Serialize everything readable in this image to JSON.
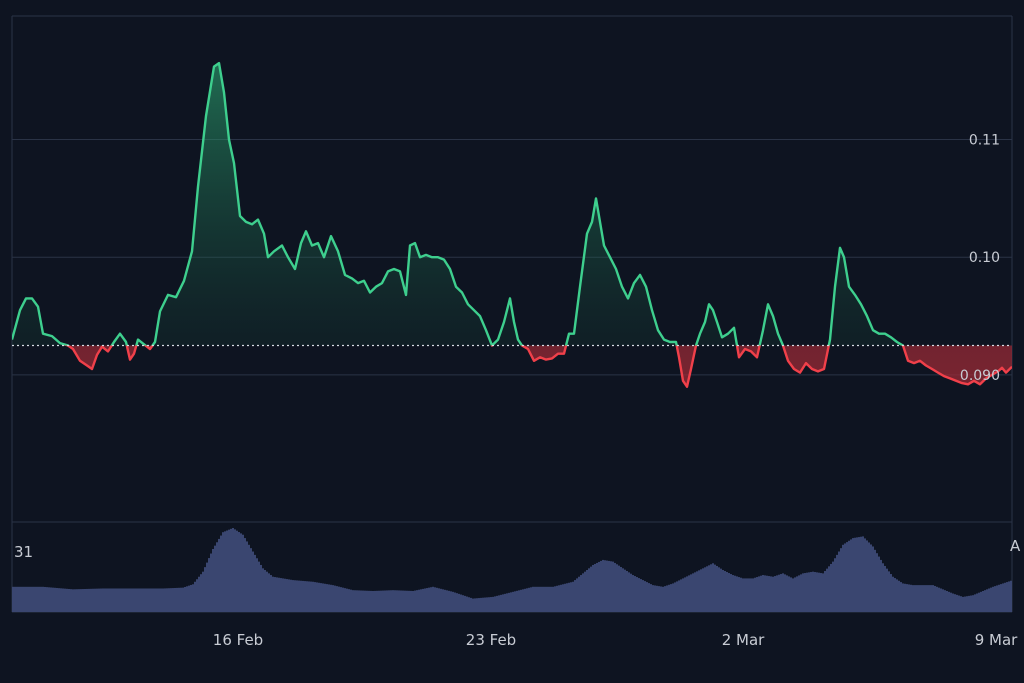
{
  "chart_data": {
    "type": "area",
    "baseline": 0.0925,
    "ylim": [
      0.0775,
      0.1205
    ],
    "y_ticks": [
      {
        "value": 0.11,
        "label": "0.11"
      },
      {
        "value": 0.1,
        "label": "0.10"
      },
      {
        "value": 0.09,
        "label": "0.090"
      }
    ],
    "x_ticks": [
      {
        "pos": 0.226,
        "label": "16 Feb"
      },
      {
        "pos": 0.479,
        "label": "23 Feb"
      },
      {
        "pos": 0.731,
        "label": "2 Mar"
      },
      {
        "pos": 0.984,
        "label": "9 Mar"
      }
    ],
    "price_series": [
      [
        0.0,
        0.093
      ],
      [
        0.008,
        0.0955
      ],
      [
        0.014,
        0.0965
      ],
      [
        0.02,
        0.0965
      ],
      [
        0.026,
        0.0958
      ],
      [
        0.031,
        0.0935
      ],
      [
        0.04,
        0.0933
      ],
      [
        0.048,
        0.0927
      ],
      [
        0.056,
        0.0925
      ],
      [
        0.061,
        0.0922
      ],
      [
        0.068,
        0.0912
      ],
      [
        0.075,
        0.0908
      ],
      [
        0.08,
        0.0905
      ],
      [
        0.085,
        0.0917
      ],
      [
        0.09,
        0.0924
      ],
      [
        0.096,
        0.092
      ],
      [
        0.102,
        0.0928
      ],
      [
        0.108,
        0.0935
      ],
      [
        0.114,
        0.0928
      ],
      [
        0.118,
        0.0913
      ],
      [
        0.122,
        0.0918
      ],
      [
        0.126,
        0.093
      ],
      [
        0.132,
        0.0926
      ],
      [
        0.138,
        0.0922
      ],
      [
        0.143,
        0.0928
      ],
      [
        0.148,
        0.0954
      ],
      [
        0.156,
        0.0968
      ],
      [
        0.164,
        0.0966
      ],
      [
        0.172,
        0.098
      ],
      [
        0.18,
        0.1005
      ],
      [
        0.186,
        0.106
      ],
      [
        0.194,
        0.112
      ],
      [
        0.202,
        0.1162
      ],
      [
        0.207,
        0.1165
      ],
      [
        0.212,
        0.114
      ],
      [
        0.217,
        0.11
      ],
      [
        0.222,
        0.108
      ],
      [
        0.228,
        0.1035
      ],
      [
        0.234,
        0.103
      ],
      [
        0.24,
        0.1028
      ],
      [
        0.246,
        0.1032
      ],
      [
        0.252,
        0.102
      ],
      [
        0.256,
        0.1
      ],
      [
        0.262,
        0.1005
      ],
      [
        0.27,
        0.101
      ],
      [
        0.276,
        0.1
      ],
      [
        0.283,
        0.099
      ],
      [
        0.289,
        0.1012
      ],
      [
        0.294,
        0.1022
      ],
      [
        0.3,
        0.101
      ],
      [
        0.306,
        0.1012
      ],
      [
        0.312,
        0.1
      ],
      [
        0.319,
        0.1018
      ],
      [
        0.326,
        0.1005
      ],
      [
        0.333,
        0.0985
      ],
      [
        0.34,
        0.0982
      ],
      [
        0.346,
        0.0978
      ],
      [
        0.352,
        0.098
      ],
      [
        0.358,
        0.097
      ],
      [
        0.364,
        0.0975
      ],
      [
        0.37,
        0.0978
      ],
      [
        0.376,
        0.0988
      ],
      [
        0.382,
        0.099
      ],
      [
        0.388,
        0.0988
      ],
      [
        0.394,
        0.0968
      ],
      [
        0.398,
        0.101
      ],
      [
        0.403,
        0.1012
      ],
      [
        0.408,
        0.1
      ],
      [
        0.414,
        0.1002
      ],
      [
        0.42,
        0.1
      ],
      [
        0.426,
        0.1
      ],
      [
        0.432,
        0.0998
      ],
      [
        0.438,
        0.099
      ],
      [
        0.444,
        0.0975
      ],
      [
        0.45,
        0.097
      ],
      [
        0.456,
        0.096
      ],
      [
        0.462,
        0.0955
      ],
      [
        0.468,
        0.095
      ],
      [
        0.474,
        0.0938
      ],
      [
        0.48,
        0.0925
      ],
      [
        0.486,
        0.093
      ],
      [
        0.492,
        0.0945
      ],
      [
        0.498,
        0.0965
      ],
      [
        0.502,
        0.0945
      ],
      [
        0.506,
        0.093
      ],
      [
        0.51,
        0.0925
      ],
      [
        0.516,
        0.0922
      ],
      [
        0.522,
        0.0912
      ],
      [
        0.528,
        0.0915
      ],
      [
        0.534,
        0.0913
      ],
      [
        0.54,
        0.0914
      ],
      [
        0.546,
        0.0918
      ],
      [
        0.552,
        0.0918
      ],
      [
        0.557,
        0.0935
      ],
      [
        0.562,
        0.0935
      ],
      [
        0.568,
        0.0975
      ],
      [
        0.575,
        0.102
      ],
      [
        0.58,
        0.103
      ],
      [
        0.584,
        0.105
      ],
      [
        0.588,
        0.103
      ],
      [
        0.592,
        0.101
      ],
      [
        0.598,
        0.1
      ],
      [
        0.604,
        0.099
      ],
      [
        0.61,
        0.0975
      ],
      [
        0.616,
        0.0965
      ],
      [
        0.622,
        0.0978
      ],
      [
        0.628,
        0.0985
      ],
      [
        0.634,
        0.0975
      ],
      [
        0.64,
        0.0955
      ],
      [
        0.646,
        0.0938
      ],
      [
        0.652,
        0.093
      ],
      [
        0.658,
        0.0928
      ],
      [
        0.664,
        0.0928
      ],
      [
        0.667,
        0.0915
      ],
      [
        0.671,
        0.0895
      ],
      [
        0.675,
        0.089
      ],
      [
        0.679,
        0.0905
      ],
      [
        0.684,
        0.0925
      ],
      [
        0.688,
        0.0935
      ],
      [
        0.693,
        0.0945
      ],
      [
        0.697,
        0.096
      ],
      [
        0.701,
        0.0955
      ],
      [
        0.705,
        0.0945
      ],
      [
        0.71,
        0.0932
      ],
      [
        0.716,
        0.0935
      ],
      [
        0.722,
        0.094
      ],
      [
        0.727,
        0.0915
      ],
      [
        0.733,
        0.0922
      ],
      [
        0.739,
        0.092
      ],
      [
        0.745,
        0.0915
      ],
      [
        0.751,
        0.0938
      ],
      [
        0.756,
        0.096
      ],
      [
        0.761,
        0.095
      ],
      [
        0.766,
        0.0935
      ],
      [
        0.771,
        0.0925
      ],
      [
        0.776,
        0.0912
      ],
      [
        0.782,
        0.0905
      ],
      [
        0.788,
        0.0902
      ],
      [
        0.794,
        0.091
      ],
      [
        0.8,
        0.0905
      ],
      [
        0.806,
        0.0903
      ],
      [
        0.812,
        0.0905
      ],
      [
        0.818,
        0.093
      ],
      [
        0.823,
        0.0975
      ],
      [
        0.828,
        0.1008
      ],
      [
        0.832,
        0.1
      ],
      [
        0.837,
        0.0975
      ],
      [
        0.843,
        0.0968
      ],
      [
        0.849,
        0.096
      ],
      [
        0.855,
        0.095
      ],
      [
        0.861,
        0.0938
      ],
      [
        0.867,
        0.0935
      ],
      [
        0.873,
        0.0935
      ],
      [
        0.879,
        0.0932
      ],
      [
        0.885,
        0.0928
      ],
      [
        0.891,
        0.0925
      ],
      [
        0.896,
        0.0912
      ],
      [
        0.902,
        0.091
      ],
      [
        0.908,
        0.0912
      ],
      [
        0.914,
        0.0908
      ],
      [
        0.92,
        0.0905
      ],
      [
        0.926,
        0.0902
      ],
      [
        0.932,
        0.0899
      ],
      [
        0.938,
        0.0897
      ],
      [
        0.944,
        0.0895
      ],
      [
        0.95,
        0.0893
      ],
      [
        0.956,
        0.0892
      ],
      [
        0.962,
        0.0895
      ],
      [
        0.968,
        0.0892
      ],
      [
        0.974,
        0.0897
      ],
      [
        0.98,
        0.09
      ],
      [
        0.986,
        0.0903
      ],
      [
        0.99,
        0.0906
      ],
      [
        0.994,
        0.0902
      ],
      [
        1.0,
        0.0907
      ]
    ],
    "volume_series": [
      [
        0.0,
        0.3
      ],
      [
        0.03,
        0.3
      ],
      [
        0.06,
        0.27
      ],
      [
        0.09,
        0.28
      ],
      [
        0.12,
        0.28
      ],
      [
        0.15,
        0.28
      ],
      [
        0.17,
        0.29
      ],
      [
        0.18,
        0.33
      ],
      [
        0.19,
        0.48
      ],
      [
        0.2,
        0.75
      ],
      [
        0.21,
        0.95
      ],
      [
        0.22,
        1.0
      ],
      [
        0.23,
        0.92
      ],
      [
        0.24,
        0.72
      ],
      [
        0.25,
        0.52
      ],
      [
        0.26,
        0.42
      ],
      [
        0.27,
        0.4
      ],
      [
        0.28,
        0.38
      ],
      [
        0.3,
        0.36
      ],
      [
        0.32,
        0.32
      ],
      [
        0.34,
        0.26
      ],
      [
        0.36,
        0.25
      ],
      [
        0.38,
        0.26
      ],
      [
        0.4,
        0.25
      ],
      [
        0.42,
        0.3
      ],
      [
        0.44,
        0.24
      ],
      [
        0.46,
        0.16
      ],
      [
        0.48,
        0.18
      ],
      [
        0.5,
        0.24
      ],
      [
        0.52,
        0.3
      ],
      [
        0.54,
        0.3
      ],
      [
        0.56,
        0.36
      ],
      [
        0.57,
        0.46
      ],
      [
        0.58,
        0.56
      ],
      [
        0.59,
        0.62
      ],
      [
        0.6,
        0.6
      ],
      [
        0.61,
        0.52
      ],
      [
        0.62,
        0.44
      ],
      [
        0.63,
        0.38
      ],
      [
        0.64,
        0.32
      ],
      [
        0.65,
        0.3
      ],
      [
        0.66,
        0.34
      ],
      [
        0.67,
        0.4
      ],
      [
        0.68,
        0.46
      ],
      [
        0.69,
        0.52
      ],
      [
        0.7,
        0.58
      ],
      [
        0.71,
        0.5
      ],
      [
        0.72,
        0.44
      ],
      [
        0.73,
        0.4
      ],
      [
        0.74,
        0.4
      ],
      [
        0.75,
        0.44
      ],
      [
        0.76,
        0.42
      ],
      [
        0.77,
        0.46
      ],
      [
        0.78,
        0.4
      ],
      [
        0.79,
        0.46
      ],
      [
        0.8,
        0.48
      ],
      [
        0.81,
        0.46
      ],
      [
        0.82,
        0.6
      ],
      [
        0.83,
        0.8
      ],
      [
        0.84,
        0.88
      ],
      [
        0.85,
        0.9
      ],
      [
        0.86,
        0.78
      ],
      [
        0.87,
        0.58
      ],
      [
        0.88,
        0.42
      ],
      [
        0.89,
        0.34
      ],
      [
        0.9,
        0.32
      ],
      [
        0.92,
        0.32
      ],
      [
        0.94,
        0.22
      ],
      [
        0.95,
        0.18
      ],
      [
        0.96,
        0.2
      ],
      [
        0.98,
        0.3
      ],
      [
        1.0,
        0.38
      ]
    ]
  },
  "volume_panel": {
    "left_label": "31",
    "right_label": "A"
  },
  "colors": {
    "background": "#0e1421",
    "up_line": "#3ecf8e",
    "down_line": "#f0404a",
    "volume": "#3a4670",
    "grid": "#2a3346",
    "text": "#c8ccd4"
  }
}
